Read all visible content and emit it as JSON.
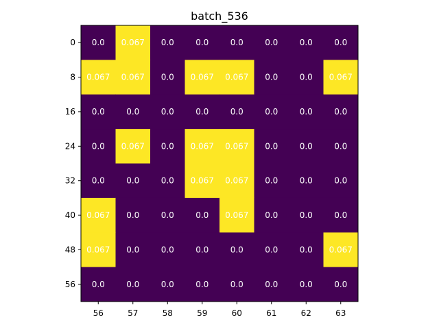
{
  "chart_data": {
    "type": "heatmap",
    "title": "batch_536",
    "xlabel": "",
    "ylabel": "",
    "x_ticks": [
      "56",
      "57",
      "58",
      "59",
      "60",
      "61",
      "62",
      "63"
    ],
    "y_ticks": [
      "0",
      "8",
      "16",
      "24",
      "32",
      "40",
      "48",
      "56"
    ],
    "values": [
      [
        0.0,
        0.067,
        0.0,
        0.0,
        0.0,
        0.0,
        0.0,
        0.0
      ],
      [
        0.067,
        0.067,
        0.0,
        0.067,
        0.067,
        0.0,
        0.0,
        0.067
      ],
      [
        0.0,
        0.0,
        0.0,
        0.0,
        0.0,
        0.0,
        0.0,
        0.0
      ],
      [
        0.0,
        0.067,
        0.0,
        0.067,
        0.067,
        0.0,
        0.0,
        0.0
      ],
      [
        0.0,
        0.0,
        0.0,
        0.067,
        0.067,
        0.0,
        0.0,
        0.0
      ],
      [
        0.067,
        0.0,
        0.0,
        0.0,
        0.067,
        0.0,
        0.0,
        0.0
      ],
      [
        0.067,
        0.0,
        0.0,
        0.0,
        0.0,
        0.0,
        0.0,
        0.067
      ],
      [
        0.0,
        0.0,
        0.0,
        0.0,
        0.0,
        0.0,
        0.0,
        0.0
      ]
    ],
    "value_range": [
      0.0,
      0.067
    ],
    "colormap": {
      "low": "#440154",
      "high": "#fde725"
    },
    "cell_text_color": "#ffffff",
    "grid": false,
    "legend": "none"
  }
}
